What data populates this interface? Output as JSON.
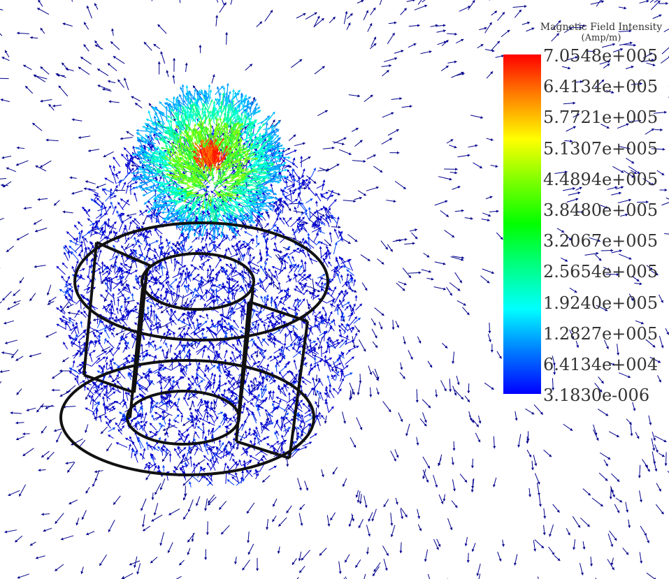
{
  "legend": {
    "title": "Magnetic Field Intensity",
    "unit": "(Amp/m)",
    "ticks": [
      "7.0548e+005",
      "6.4134e+005",
      "5.7721e+005",
      "5.1307e+005",
      "4.4894e+005",
      "3.8480e+005",
      "3.2067e+005",
      "2.5654e+005",
      "1.9240e+005",
      "1.2827e+005",
      "6.4134e+004",
      "3.1830e-006"
    ],
    "colors": [
      "#ff0000",
      "#ff8000",
      "#ffff00",
      "#80ff00",
      "#00ff00",
      "#00ff80",
      "#00ffff",
      "#0080ff",
      "#0000ff"
    ]
  },
  "scene": {
    "arrow_color": "#00008b",
    "wireframe_color": "#111111"
  }
}
